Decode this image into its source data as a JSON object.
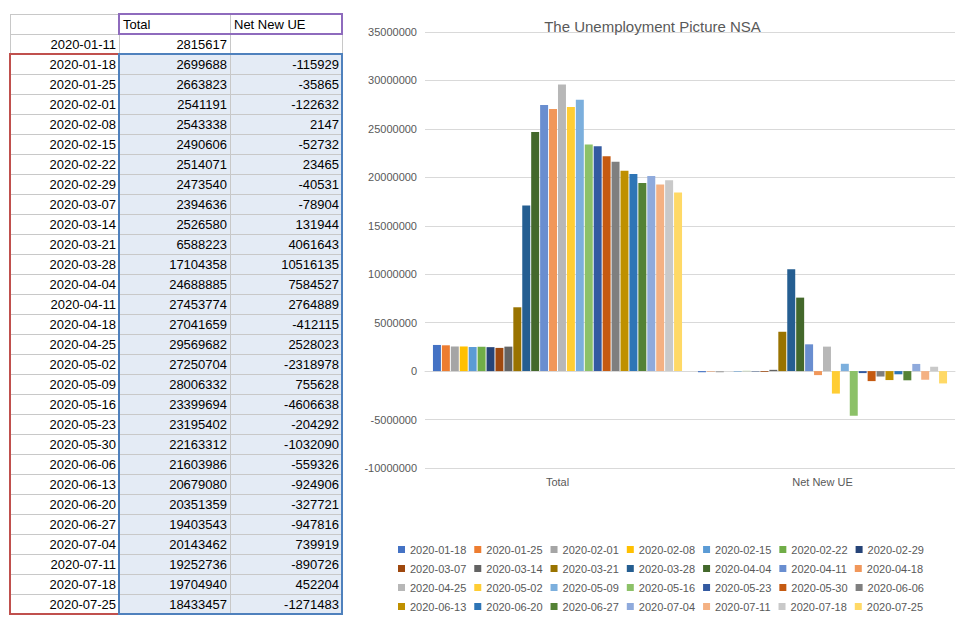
{
  "table": {
    "header": [
      "Total",
      "Net New UE"
    ],
    "rows": [
      [
        "2020-01-11",
        2815617,
        null
      ],
      [
        "2020-01-18",
        2699688,
        -115929
      ],
      [
        "2020-01-25",
        2663823,
        -35865
      ],
      [
        "2020-02-01",
        2541191,
        -122632
      ],
      [
        "2020-02-08",
        2543338,
        2147
      ],
      [
        "2020-02-15",
        2490606,
        -52732
      ],
      [
        "2020-02-22",
        2514071,
        23465
      ],
      [
        "2020-02-29",
        2473540,
        -40531
      ],
      [
        "2020-03-07",
        2394636,
        -78904
      ],
      [
        "2020-03-14",
        2526580,
        131944
      ],
      [
        "2020-03-21",
        6588223,
        4061643
      ],
      [
        "2020-03-28",
        17104358,
        10516135
      ],
      [
        "2020-04-04",
        24688885,
        7584527
      ],
      [
        "2020-04-11",
        27453774,
        2764889
      ],
      [
        "2020-04-18",
        27041659,
        -412115
      ],
      [
        "2020-04-25",
        29569682,
        2528023
      ],
      [
        "2020-05-02",
        27250704,
        -2318978
      ],
      [
        "2020-05-09",
        28006332,
        755628
      ],
      [
        "2020-05-16",
        23399694,
        -4606638
      ],
      [
        "2020-05-23",
        23195402,
        -204292
      ],
      [
        "2020-05-30",
        22163312,
        -1032090
      ],
      [
        "2020-06-06",
        21603986,
        -559326
      ],
      [
        "2020-06-13",
        20679080,
        -924906
      ],
      [
        "2020-06-20",
        20351359,
        -327721
      ],
      [
        "2020-06-27",
        19403543,
        -947816
      ],
      [
        "2020-07-04",
        20143462,
        739919
      ],
      [
        "2020-07-11",
        19252736,
        -890726
      ],
      [
        "2020-07-18",
        19704940,
        452204
      ],
      [
        "2020-07-25",
        18433457,
        -1271483
      ]
    ]
  },
  "chart_data": {
    "type": "bar",
    "title": "The Unemployment Picture NSA",
    "categories": [
      "Total",
      "Net New UE"
    ],
    "series": [
      {
        "name": "2020-01-18",
        "color": "#4472c4",
        "values": [
          2699688,
          -115929
        ]
      },
      {
        "name": "2020-01-25",
        "color": "#ed7d31",
        "values": [
          2663823,
          -35865
        ]
      },
      {
        "name": "2020-02-01",
        "color": "#a5a5a5",
        "values": [
          2541191,
          -122632
        ]
      },
      {
        "name": "2020-02-08",
        "color": "#ffc000",
        "values": [
          2543338,
          2147
        ]
      },
      {
        "name": "2020-02-15",
        "color": "#5b9bd5",
        "values": [
          2490606,
          -52732
        ]
      },
      {
        "name": "2020-02-22",
        "color": "#70ad47",
        "values": [
          2514071,
          23465
        ]
      },
      {
        "name": "2020-02-29",
        "color": "#264478",
        "values": [
          2473540,
          -40531
        ]
      },
      {
        "name": "2020-03-07",
        "color": "#9e480e",
        "values": [
          2394636,
          -78904
        ]
      },
      {
        "name": "2020-03-14",
        "color": "#636363",
        "values": [
          2526580,
          131944
        ]
      },
      {
        "name": "2020-03-21",
        "color": "#997300",
        "values": [
          6588223,
          4061643
        ]
      },
      {
        "name": "2020-03-28",
        "color": "#255e91",
        "values": [
          17104358,
          10516135
        ]
      },
      {
        "name": "2020-04-04",
        "color": "#43682b",
        "values": [
          24688885,
          7584527
        ]
      },
      {
        "name": "2020-04-11",
        "color": "#698ed0",
        "values": [
          27453774,
          2764889
        ]
      },
      {
        "name": "2020-04-18",
        "color": "#f1975a",
        "values": [
          27041659,
          -412115
        ]
      },
      {
        "name": "2020-04-25",
        "color": "#b7b7b7",
        "values": [
          29569682,
          2528023
        ]
      },
      {
        "name": "2020-05-02",
        "color": "#ffcd33",
        "values": [
          27250704,
          -2318978
        ]
      },
      {
        "name": "2020-05-09",
        "color": "#7cafdd",
        "values": [
          28006332,
          755628
        ]
      },
      {
        "name": "2020-05-16",
        "color": "#8cc168",
        "values": [
          23399694,
          -4606638
        ]
      },
      {
        "name": "2020-05-23",
        "color": "#335aa1",
        "values": [
          23195402,
          -204292
        ]
      },
      {
        "name": "2020-05-30",
        "color": "#c55a11",
        "values": [
          22163312,
          -1032090
        ]
      },
      {
        "name": "2020-06-06",
        "color": "#7f7f7f",
        "values": [
          21603986,
          -559326
        ]
      },
      {
        "name": "2020-06-13",
        "color": "#bf9000",
        "values": [
          20679080,
          -924906
        ]
      },
      {
        "name": "2020-06-20",
        "color": "#2e75b6",
        "values": [
          20351359,
          -327721
        ]
      },
      {
        "name": "2020-06-27",
        "color": "#548235",
        "values": [
          19403543,
          -947816
        ]
      },
      {
        "name": "2020-07-04",
        "color": "#8faadc",
        "values": [
          20143462,
          739919
        ]
      },
      {
        "name": "2020-07-11",
        "color": "#f4b183",
        "values": [
          19252736,
          -890726
        ]
      },
      {
        "name": "2020-07-18",
        "color": "#c9c9c9",
        "values": [
          19704940,
          452204
        ]
      },
      {
        "name": "2020-07-25",
        "color": "#ffd966",
        "values": [
          18433457,
          -1271483
        ]
      }
    ],
    "ylim": [
      -10000000,
      35000000
    ],
    "yticks": [
      -10000000,
      -5000000,
      0,
      5000000,
      10000000,
      15000000,
      20000000,
      25000000,
      30000000,
      35000000
    ],
    "grid": true,
    "legend": "bottom"
  }
}
